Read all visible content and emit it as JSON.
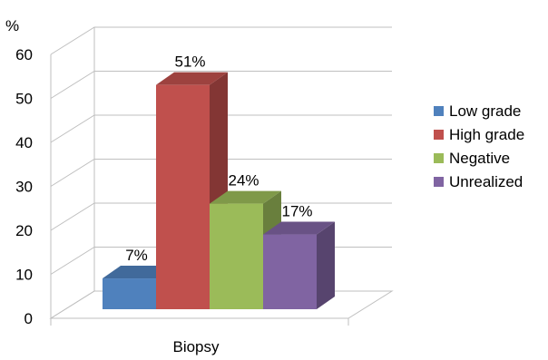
{
  "chart_data": {
    "type": "bar",
    "categories": [
      "Biopsy"
    ],
    "series": [
      {
        "name": "Low grade",
        "values": [
          7
        ],
        "data_label": "7%"
      },
      {
        "name": "High grade",
        "values": [
          51
        ],
        "data_label": "51%"
      },
      {
        "name": "Negative",
        "values": [
          24
        ],
        "data_label": "24%"
      },
      {
        "name": "Unrealized",
        "values": [
          17
        ],
        "data_label": "17%"
      }
    ],
    "ylabel": "%",
    "ylim": [
      0,
      60
    ],
    "yticks": [
      "0",
      "10",
      "20",
      "30",
      "40",
      "50",
      "60"
    ],
    "grid": true,
    "legend": "right",
    "colors": [
      "#4f81bd",
      "#c0504d",
      "#9bbb59",
      "#8064a2"
    ]
  }
}
